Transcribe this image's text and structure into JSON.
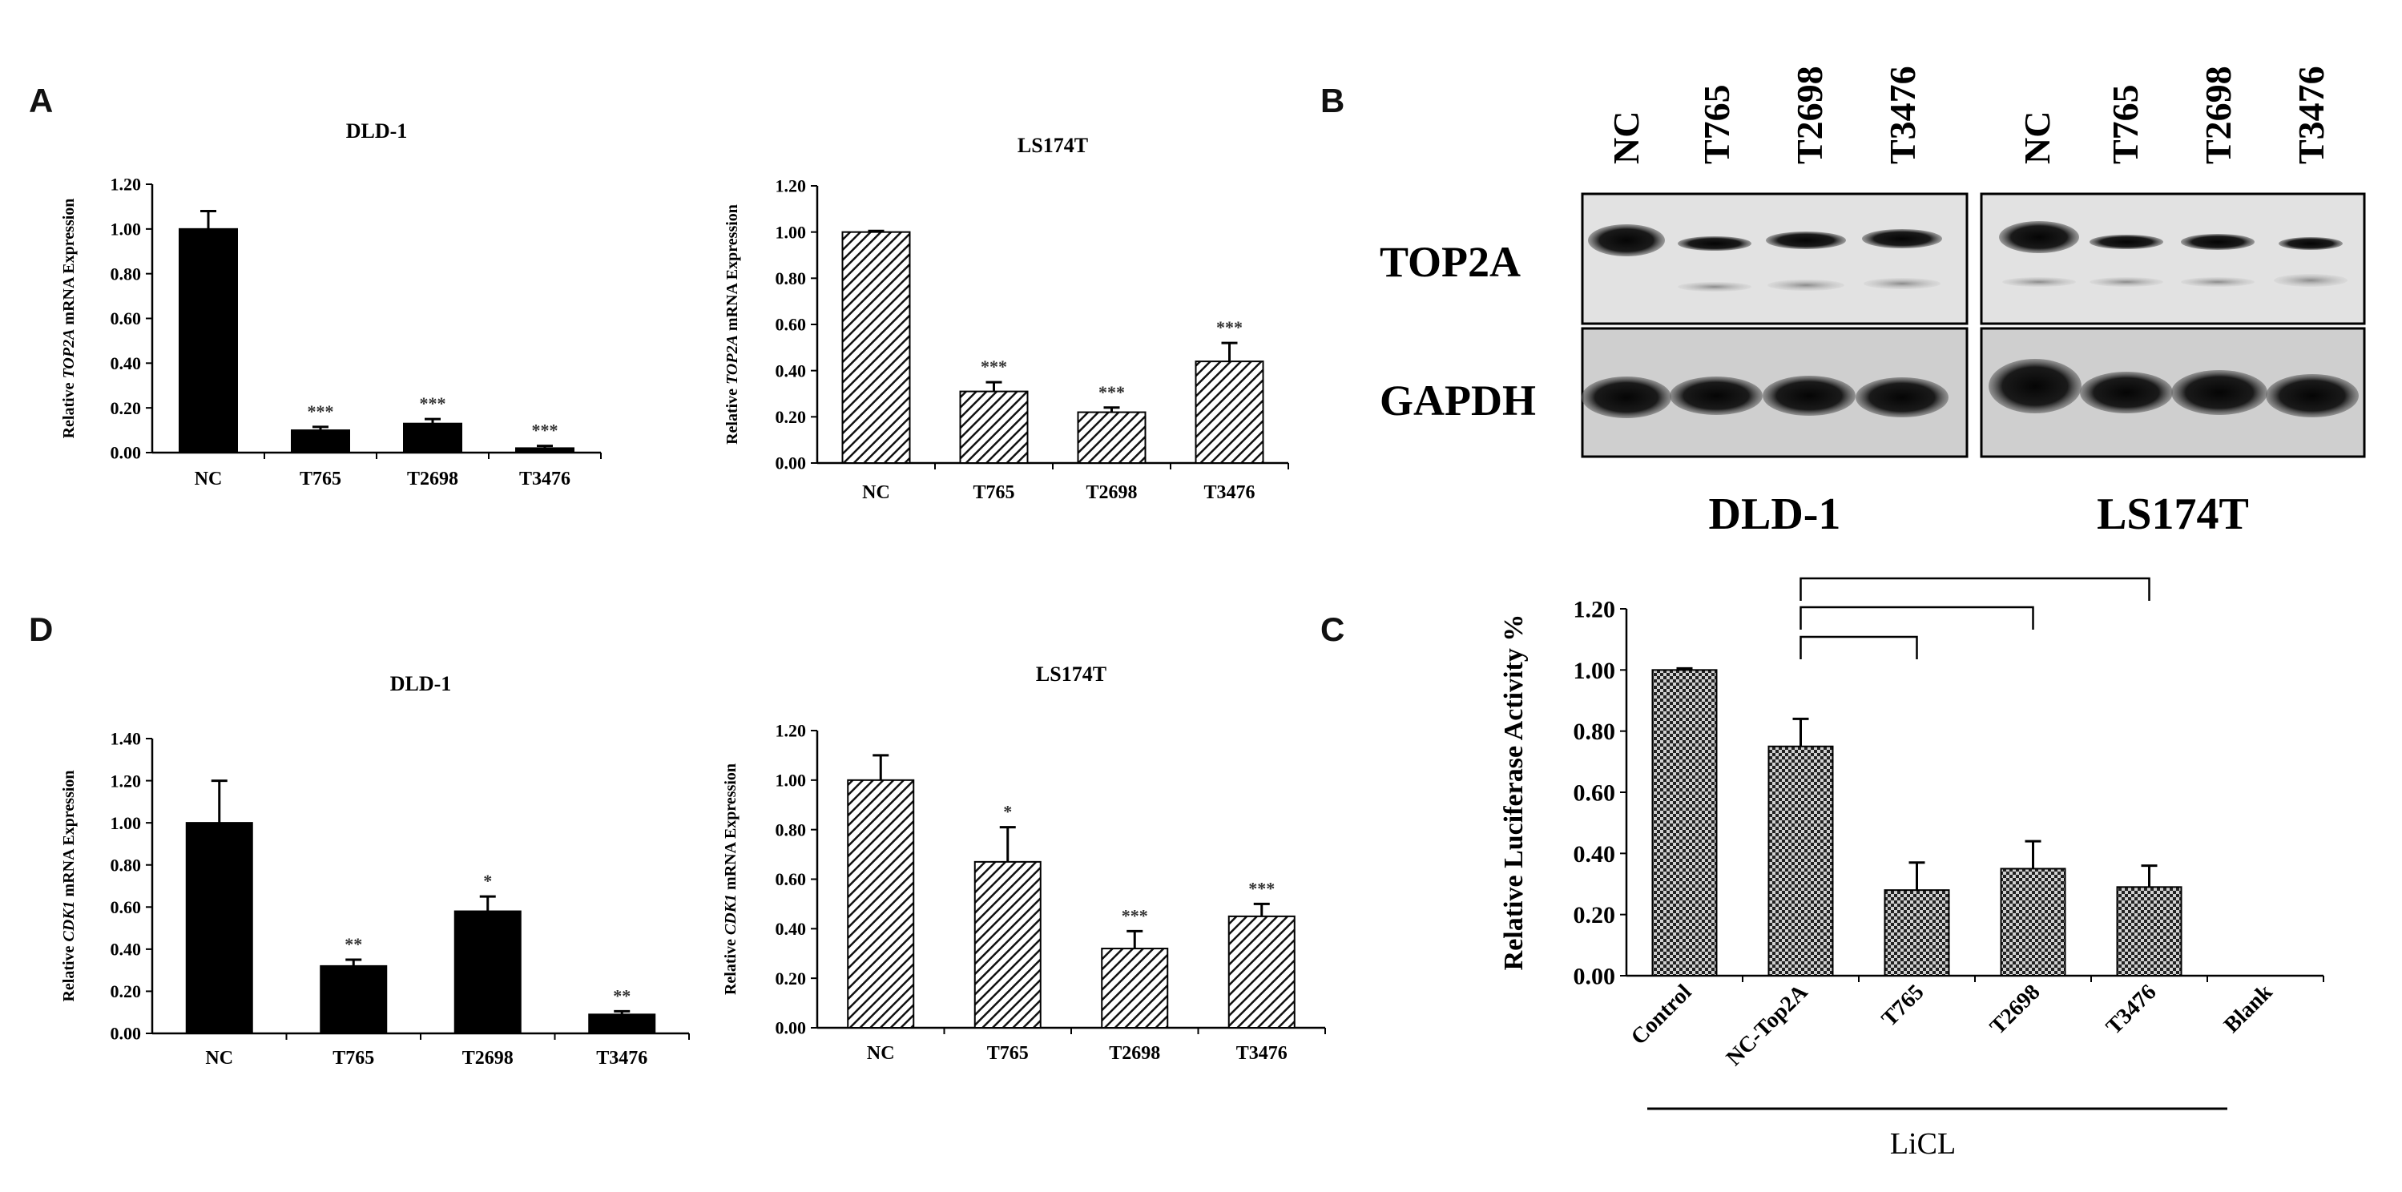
{
  "panels": {
    "A": "A",
    "B": "B",
    "C": "C",
    "D": "D"
  },
  "blot": {
    "lanes": [
      "NC",
      "T765",
      "T2698",
      "T3476"
    ],
    "rows": [
      "TOP2A",
      "GAPDH"
    ],
    "cell_lines": [
      "DLD-1",
      "LS174T"
    ]
  },
  "chart_data": [
    {
      "id": "A1",
      "type": "bar",
      "title": "DLD-1",
      "ylabel_parts": [
        "Relative ",
        "TOP2A",
        " mRNA Expression"
      ],
      "categories": [
        "NC",
        "T765",
        "T2698",
        "T3476"
      ],
      "values": [
        1.0,
        0.1,
        0.13,
        0.02
      ],
      "errors": [
        0.08,
        0.015,
        0.02,
        0.01
      ],
      "significance": [
        "",
        "***",
        "***",
        "***"
      ],
      "ylim": [
        0,
        1.2
      ],
      "yticks": [
        "0.00",
        "0.20",
        "0.40",
        "0.60",
        "0.80",
        "1.00",
        "1.20"
      ],
      "fill": "solid",
      "color": "#000000"
    },
    {
      "id": "A2",
      "type": "bar",
      "title": "LS174T",
      "ylabel_parts": [
        "Relative ",
        "TOP2A",
        " mRNA Expression"
      ],
      "categories": [
        "NC",
        "T765",
        "T2698",
        "T3476"
      ],
      "values": [
        1.0,
        0.31,
        0.22,
        0.44
      ],
      "errors": [
        0.005,
        0.04,
        0.02,
        0.08
      ],
      "significance": [
        "",
        "***",
        "***",
        "***"
      ],
      "ylim": [
        0,
        1.2
      ],
      "yticks": [
        "0.00",
        "0.20",
        "0.40",
        "0.60",
        "0.80",
        "1.00",
        "1.20"
      ],
      "fill": "diagonal-hatch",
      "color": "#000000"
    },
    {
      "id": "D1",
      "type": "bar",
      "title": "DLD-1",
      "ylabel_parts": [
        "Relative ",
        "CDK1",
        " mRNA Expression"
      ],
      "categories": [
        "NC",
        "T765",
        "T2698",
        "T3476"
      ],
      "values": [
        1.0,
        0.32,
        0.58,
        0.09
      ],
      "errors": [
        0.2,
        0.03,
        0.07,
        0.015
      ],
      "significance": [
        "",
        "**",
        "*",
        "**"
      ],
      "ylim": [
        0,
        1.4
      ],
      "yticks": [
        "0.00",
        "0.20",
        "0.40",
        "0.60",
        "0.80",
        "1.00",
        "1.20",
        "1.40"
      ],
      "fill": "solid",
      "color": "#000000"
    },
    {
      "id": "D2",
      "type": "bar",
      "title": "LS174T",
      "ylabel_parts": [
        "Relative ",
        "CDK1",
        " mRNA Expression"
      ],
      "categories": [
        "NC",
        "T765",
        "T2698",
        "T3476"
      ],
      "values": [
        1.0,
        0.67,
        0.32,
        0.45
      ],
      "errors": [
        0.1,
        0.14,
        0.07,
        0.05
      ],
      "significance": [
        "",
        "*",
        "***",
        "***"
      ],
      "ylim": [
        0,
        1.2
      ],
      "yticks": [
        "0.00",
        "0.20",
        "0.40",
        "0.60",
        "0.80",
        "1.00",
        "1.20"
      ],
      "fill": "diagonal-hatch",
      "color": "#000000"
    },
    {
      "id": "C",
      "type": "bar",
      "title": "",
      "ylabel": "Relative Luciferase Activity %",
      "categories": [
        "Control",
        "NC-Top2A",
        "T765",
        "T2698",
        "T3476",
        "Blank"
      ],
      "values": [
        1.0,
        0.75,
        0.28,
        0.35,
        0.29,
        0
      ],
      "errors": [
        0.005,
        0.09,
        0.09,
        0.09,
        0.07,
        0
      ],
      "ylim": [
        0,
        1.2
      ],
      "yticks": [
        "0.00",
        "0.20",
        "0.40",
        "0.60",
        "0.80",
        "1.00",
        "1.20"
      ],
      "fill": "crosshatch",
      "color": "#000000",
      "comparisons": [
        {
          "from": "NC-Top2A",
          "to": "T765",
          "label": "***"
        },
        {
          "from": "NC-Top2A",
          "to": "T2698",
          "label": "***"
        },
        {
          "from": "NC-Top2A",
          "to": "T3476",
          "label": "***"
        }
      ],
      "group_label": "LiCL"
    }
  ]
}
